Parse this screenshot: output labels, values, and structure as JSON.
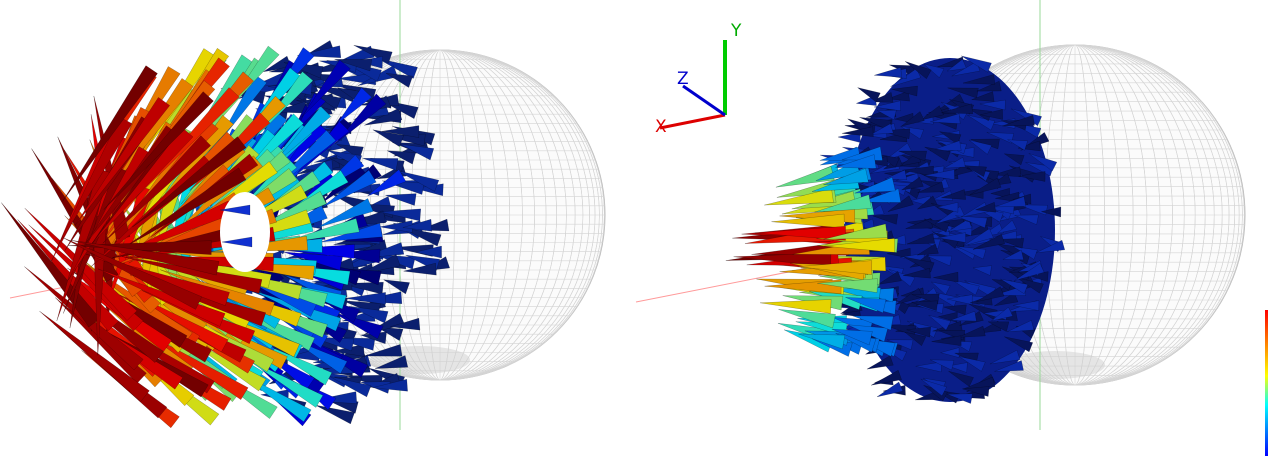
{
  "axes": {
    "x": "X",
    "y": "Y",
    "z": "Z"
  }
}
